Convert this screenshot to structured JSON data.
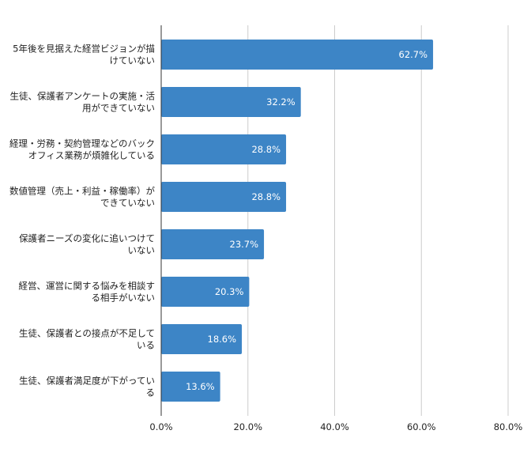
{
  "chart_data": {
    "type": "bar",
    "orientation": "horizontal",
    "categories": [
      [
        "5年後を見据えた経営ビジョンが描",
        "けていない"
      ],
      [
        "生徒、保護者アンケートの実施・活",
        "用ができていない"
      ],
      [
        "経理・労務・契約管理などのバック",
        "オフィス業務が煩雑化している"
      ],
      [
        "数値管理（売上・利益・稼働率）が",
        "できていない"
      ],
      [
        "保護者ニーズの変化に追いつけて",
        "いない"
      ],
      [
        "経営、運営に関する悩みを相談す",
        "る相手がいない"
      ],
      [
        "生徒、保護者との接点が不足して",
        "いる"
      ],
      [
        "生徒、保護者満足度が下がってい",
        "る"
      ]
    ],
    "values": [
      62.7,
      32.2,
      28.8,
      28.8,
      23.7,
      20.3,
      18.6,
      13.6
    ],
    "data_labels": [
      "62.7%",
      "32.2%",
      "28.8%",
      "28.8%",
      "23.7%",
      "20.3%",
      "18.6%",
      "13.6%"
    ],
    "x_ticks": [
      "0.0%",
      "20.0%",
      "40.0%",
      "60.0%",
      "80.0%"
    ],
    "xlim": [
      0,
      80
    ],
    "grid": true,
    "bar_color": "#3d85c6",
    "grid_color": "#cccccc",
    "axis_color": "#333333"
  }
}
